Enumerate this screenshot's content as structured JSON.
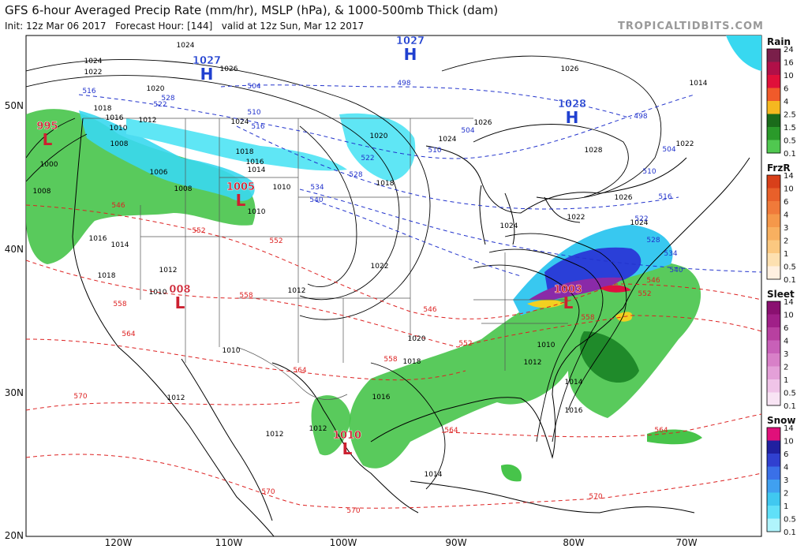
{
  "header": {
    "title": "GFS 6-hour Averaged Precip Rate (mm/hr), MSLP (hPa), & 1000-500mb Thick (dam)",
    "subtitle": "Init: 12z Mar 06 2017   Forecast Hour: [144]   valid at 12z Sun, Mar 12 2017",
    "site": "TROPICALTIDBITS.COM"
  },
  "axes": {
    "longitudes": [
      "120W",
      "110W",
      "100W",
      "90W",
      "80W",
      "70W"
    ],
    "latitudes": [
      "50N",
      "40N",
      "30N",
      "20N"
    ]
  },
  "legend": [
    {
      "title": "Rain",
      "labels": [
        "24",
        "16",
        "10",
        "6",
        "4",
        "2.5",
        "1.5",
        "0.5",
        "0.1"
      ]
    },
    {
      "title": "FrzR",
      "labels": [
        "14",
        "10",
        "6",
        "4",
        "3",
        "2",
        "1",
        "0.5",
        "0.1"
      ]
    },
    {
      "title": "Sleet",
      "labels": [
        "14",
        "10",
        "6",
        "4",
        "3",
        "2",
        "1",
        "0.5",
        "0.1"
      ]
    },
    {
      "title": "Snow",
      "labels": [
        "14",
        "10",
        "6",
        "4",
        "3",
        "2",
        "1",
        "0.5",
        "0.1"
      ]
    }
  ],
  "pressure_centers": [
    {
      "value": "1027",
      "letter": "H"
    },
    {
      "value": "1027",
      "letter": "H"
    },
    {
      "value": "1028",
      "letter": "H"
    },
    {
      "value": "995",
      "letter": "L"
    },
    {
      "value": "1005",
      "letter": "L"
    },
    {
      "value": "008",
      "letter": "L"
    },
    {
      "value": "1003",
      "letter": "L"
    },
    {
      "value": "1010",
      "letter": "L"
    }
  ],
  "isobar_labels": [
    "1024",
    "1022",
    "1020",
    "1018",
    "1016",
    "1026",
    "1024",
    "1026",
    "1026",
    "1024",
    "1020",
    "1018",
    "1022",
    "1024",
    "1022",
    "1026",
    "1028",
    "1024",
    "1014",
    "1022",
    "1020",
    "1018",
    "1016",
    "1014",
    "1012",
    "1010",
    "1014",
    "1016",
    "1012",
    "1012",
    "1012",
    "1010",
    "1012",
    "1014",
    "1016",
    "1018",
    "1010",
    "1012",
    "1010",
    "1010",
    "1008",
    "1006",
    "1008",
    "1000",
    "1010",
    "1012",
    "1008",
    "1016",
    "1018",
    "1024",
    "1014"
  ],
  "cold_thickness_labels": [
    "516",
    "522",
    "528",
    "504",
    "510",
    "498",
    "504",
    "510",
    "516",
    "522",
    "528",
    "534",
    "540",
    "498",
    "504",
    "510",
    "516",
    "522",
    "528",
    "534",
    "540"
  ],
  "warm_thickness_labels": [
    "546",
    "552",
    "552",
    "558",
    "558",
    "546",
    "552",
    "558",
    "564",
    "564",
    "570",
    "570",
    "570",
    "564",
    "564",
    "546",
    "552",
    "558",
    "570"
  ]
}
